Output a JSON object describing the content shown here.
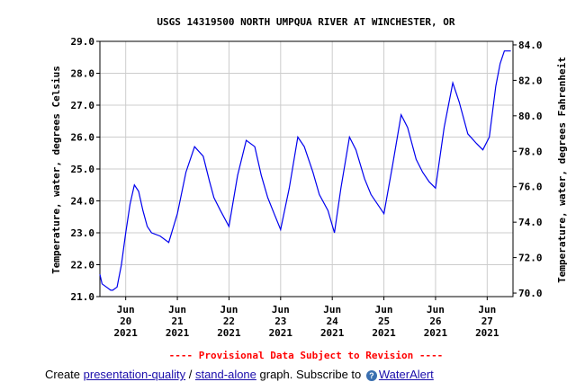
{
  "chart_data": {
    "type": "line",
    "title": "USGS 14319500 NORTH UMPQUA RIVER AT WINCHESTER, OR",
    "ylabel": "Temperature, water, degrees Celsius",
    "y2label": "Temperature, water, degrees Fahrenheit",
    "ylim": [
      21.0,
      29.0
    ],
    "y2lim": [
      69.8,
      84.2
    ],
    "yticks": [
      "21.0",
      "22.0",
      "23.0",
      "24.0",
      "25.0",
      "26.0",
      "27.0",
      "28.0",
      "29.0"
    ],
    "y2ticks": [
      "70.0",
      "72.0",
      "74.0",
      "76.0",
      "78.0",
      "80.0",
      "82.0",
      "84.0"
    ],
    "xlim": [
      "2021-06-19 12:00",
      "2021-06-27 12:00"
    ],
    "xticks": [
      {
        "month": "Jun",
        "day": "20",
        "year": "2021"
      },
      {
        "month": "Jun",
        "day": "21",
        "year": "2021"
      },
      {
        "month": "Jun",
        "day": "22",
        "year": "2021"
      },
      {
        "month": "Jun",
        "day": "23",
        "year": "2021"
      },
      {
        "month": "Jun",
        "day": "24",
        "year": "2021"
      },
      {
        "month": "Jun",
        "day": "25",
        "year": "2021"
      },
      {
        "month": "Jun",
        "day": "26",
        "year": "2021"
      },
      {
        "month": "Jun",
        "day": "27",
        "year": "2021"
      }
    ],
    "grid": true,
    "line_color": "#0000ee",
    "series": [
      {
        "x": [
          "2021-06-19 12:00",
          "2021-06-19 13:00",
          "2021-06-19 15:00",
          "2021-06-19 17:00",
          "2021-06-19 18:00",
          "2021-06-19 20:00",
          "2021-06-19 22:00",
          "2021-06-20 00:00",
          "2021-06-20 02:00",
          "2021-06-20 04:00",
          "2021-06-20 06:00",
          "2021-06-20 08:00",
          "2021-06-20 10:00",
          "2021-06-20 12:00",
          "2021-06-20 16:00",
          "2021-06-20 20:00",
          "2021-06-21 00:00",
          "2021-06-21 04:00",
          "2021-06-21 08:00",
          "2021-06-21 12:00",
          "2021-06-21 15:00",
          "2021-06-21 17:00",
          "2021-06-21 20:00",
          "2021-06-22 00:00",
          "2021-06-22 04:00",
          "2021-06-22 08:00",
          "2021-06-22 12:00",
          "2021-06-22 15:00",
          "2021-06-22 18:00",
          "2021-06-22 21:00",
          "2021-06-23 00:00",
          "2021-06-23 04:00",
          "2021-06-23 08:00",
          "2021-06-23 11:00",
          "2021-06-23 15:00",
          "2021-06-23 18:00",
          "2021-06-23 22:00",
          "2021-06-24 01:00",
          "2021-06-24 04:00",
          "2021-06-24 08:00",
          "2021-06-24 11:00",
          "2021-06-24 15:00",
          "2021-06-24 18:00",
          "2021-06-24 21:00",
          "2021-06-25 00:00",
          "2021-06-25 04:00",
          "2021-06-25 08:00",
          "2021-06-25 11:00",
          "2021-06-25 15:00",
          "2021-06-25 18:00",
          "2021-06-25 21:00",
          "2021-06-26 00:00",
          "2021-06-26 04:00",
          "2021-06-26 08:00",
          "2021-06-26 11:00",
          "2021-06-26 15:00",
          "2021-06-26 19:00",
          "2021-06-26 22:00",
          "2021-06-27 01:00",
          "2021-06-27 04:00",
          "2021-06-27 06:00",
          "2021-06-27 08:00",
          "2021-06-27 10:00",
          "2021-06-27 11:00"
        ],
        "y": [
          21.7,
          21.4,
          21.3,
          21.2,
          21.2,
          21.3,
          22.0,
          23.0,
          23.9,
          24.5,
          24.3,
          23.7,
          23.2,
          23.0,
          22.9,
          22.7,
          23.6,
          24.9,
          25.7,
          25.4,
          24.6,
          24.1,
          23.7,
          23.2,
          24.8,
          25.9,
          25.7,
          24.8,
          24.1,
          23.6,
          23.1,
          24.4,
          26.0,
          25.7,
          24.9,
          24.2,
          23.7,
          23.0,
          24.4,
          26.0,
          25.6,
          24.7,
          24.2,
          23.9,
          23.6,
          25.1,
          26.7,
          26.3,
          25.3,
          24.9,
          24.6,
          24.4,
          26.3,
          27.7,
          27.1,
          26.1,
          25.8,
          25.6,
          26.0,
          27.6,
          28.3,
          28.7,
          28.7,
          28.7
        ]
      }
    ]
  },
  "notice": "---- Provisional Data Subject to Revision ----",
  "footer": {
    "prefix": "Create ",
    "link1": "presentation-quality",
    "sep": " / ",
    "link2": "stand-alone",
    "mid": " graph.    Subscribe to ",
    "link3": "WaterAlert"
  }
}
